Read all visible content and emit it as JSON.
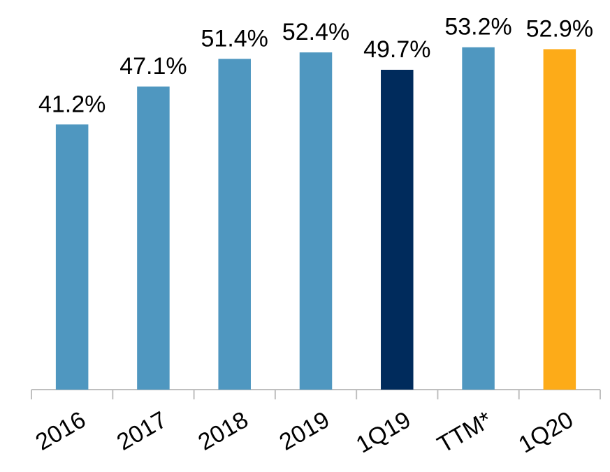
{
  "chart_data": {
    "type": "bar",
    "categories": [
      "2016",
      "2017",
      "2018",
      "2019",
      "1Q19",
      "TTM*",
      "1Q20"
    ],
    "values": [
      41.2,
      47.1,
      51.4,
      52.4,
      49.7,
      53.2,
      52.9
    ],
    "value_labels": [
      "41.2%",
      "47.1%",
      "51.4%",
      "52.4%",
      "49.7%",
      "53.2%",
      "52.9%"
    ],
    "colors": [
      "#4f97c0",
      "#4f97c0",
      "#4f97c0",
      "#4f97c0",
      "#002b5c",
      "#4f97c0",
      "#fdab18"
    ],
    "ylim": [
      0,
      60
    ]
  }
}
